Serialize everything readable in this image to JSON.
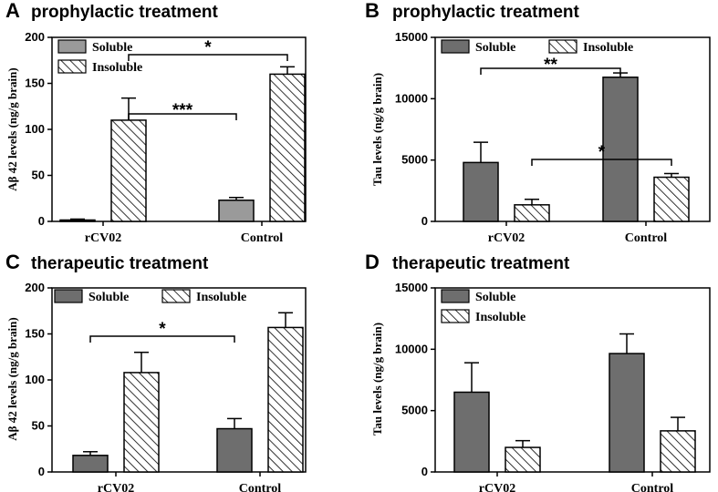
{
  "colors": {
    "soluble_fill_A": "#9a9a9a",
    "soluble_fill": "#6e6e6e",
    "outline": "#000000",
    "background": "#ffffff"
  },
  "chart_data": [
    {
      "panel": "A",
      "type": "bar",
      "title": "prophylactic treatment",
      "ylabel": "Aβ 42 levels (ng/g brain)",
      "categories": [
        "rCV02",
        "Control"
      ],
      "ylim": [
        0,
        200
      ],
      "yticks": [
        "0",
        "50",
        "100",
        "150",
        "200"
      ],
      "series": [
        {
          "name": "Soluble",
          "values": [
            1.5,
            23
          ],
          "errors": [
            1,
            3
          ],
          "pattern": "solid"
        },
        {
          "name": "Insoluble",
          "values": [
            110,
            160
          ],
          "errors": [
            24,
            8
          ],
          "pattern": "hatch"
        }
      ],
      "annotations": [
        {
          "label": "***",
          "from": "rCV02 Insoluble",
          "to": "Control Soluble"
        },
        {
          "label": "*",
          "from": "rCV02 Insoluble",
          "to": "Control Insoluble"
        }
      ],
      "legend": "top-left"
    },
    {
      "panel": "B",
      "type": "bar",
      "title": "prophylactic treatment",
      "ylabel": "Tau levels (ng/g brain)",
      "categories": [
        "rCV02",
        "Control"
      ],
      "ylim": [
        0,
        15000
      ],
      "yticks": [
        "0",
        "5000",
        "10000",
        "15000"
      ],
      "series": [
        {
          "name": "Soluble",
          "values": [
            4800,
            11750
          ],
          "errors": [
            1650,
            350
          ],
          "pattern": "solid"
        },
        {
          "name": "Insoluble",
          "values": [
            1350,
            3600
          ],
          "errors": [
            450,
            300
          ],
          "pattern": "hatch"
        }
      ],
      "annotations": [
        {
          "label": "**",
          "from": "rCV02 Soluble",
          "to": "Control Soluble"
        },
        {
          "label": "*",
          "from": "rCV02 Insoluble",
          "to": "Control Insoluble"
        }
      ],
      "legend": "top"
    },
    {
      "panel": "C",
      "type": "bar",
      "title": "therapeutic treatment",
      "ylabel": "Aβ 42 levels (ng/g brain)",
      "categories": [
        "rCV02",
        "Control"
      ],
      "ylim": [
        0,
        200
      ],
      "yticks": [
        "0",
        "50",
        "100",
        "150",
        "200"
      ],
      "series": [
        {
          "name": "Soluble",
          "values": [
            18,
            47
          ],
          "errors": [
            4,
            11
          ],
          "pattern": "solid"
        },
        {
          "name": "Insoluble",
          "values": [
            108,
            157
          ],
          "errors": [
            22,
            16
          ],
          "pattern": "hatch"
        }
      ],
      "annotations": [
        {
          "label": "*",
          "from": "rCV02 Soluble",
          "to": "Control Soluble"
        }
      ],
      "legend": "top"
    },
    {
      "panel": "D",
      "type": "bar",
      "title": "therapeutic treatment",
      "ylabel": "Tau levels (ng/g brain)",
      "categories": [
        "rCV02",
        "Control"
      ],
      "ylim": [
        0,
        15000
      ],
      "yticks": [
        "0",
        "5000",
        "10000",
        "15000"
      ],
      "series": [
        {
          "name": "Soluble",
          "values": [
            6500,
            9650
          ],
          "errors": [
            2400,
            1600
          ],
          "pattern": "solid"
        },
        {
          "name": "Insoluble",
          "values": [
            2000,
            3350
          ],
          "errors": [
            550,
            1100
          ],
          "pattern": "hatch"
        }
      ],
      "annotations": [],
      "legend": "top-left"
    }
  ]
}
